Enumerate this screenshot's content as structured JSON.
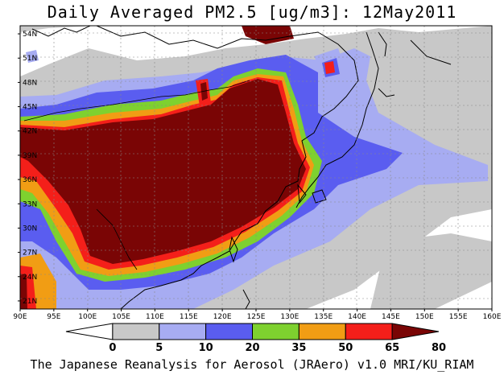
{
  "title": "Daily Averaged PM2.5 [ug/m3]: 12May2011",
  "credit": "The Japanese Reanalysis for Aerosol (JRAero) v1.0 MRI/KU_RIAM",
  "map": {
    "lon_range": [
      90,
      160
    ],
    "lat_range": [
      20,
      55
    ],
    "lon_labels": [
      "90E",
      "95E",
      "100E",
      "105E",
      "110E",
      "115E",
      "120E",
      "125E",
      "130E",
      "135E",
      "140E",
      "145E",
      "150E",
      "155E",
      "160E"
    ],
    "lat_labels": [
      "54N",
      "51N",
      "48N",
      "45N",
      "42N",
      "39N",
      "36N",
      "33N",
      "30N",
      "27N",
      "24N",
      "21N"
    ]
  },
  "colorbar": {
    "labels": [
      "0",
      "5",
      "10",
      "20",
      "35",
      "50",
      "65",
      "80"
    ],
    "colors": [
      "#ffffff",
      "#c8c8c8",
      "#a7acf2",
      "#5a5df0",
      "#7ed12f",
      "#f19d14",
      "#f41f1a",
      "#7a0505"
    ]
  }
}
